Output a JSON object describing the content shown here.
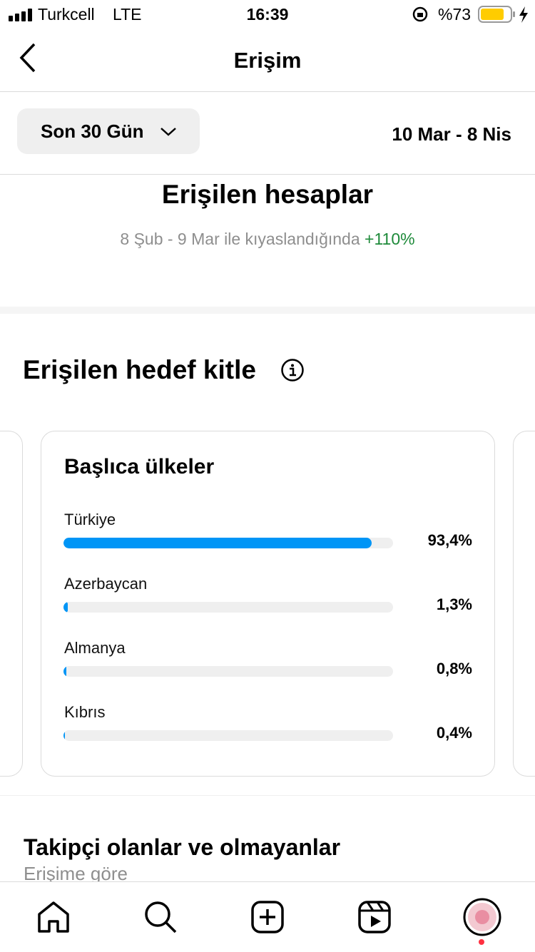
{
  "status_bar": {
    "carrier": "Turkcell",
    "network": "LTE",
    "time": "16:39",
    "battery": "%73"
  },
  "header": {
    "title": "Erişim"
  },
  "filter": {
    "period": "Son 30 Gün",
    "range": "10 Mar - 8 Nis"
  },
  "summary": {
    "title": "Erişilen hesaplar",
    "comparison": "8 Şub - 9 Mar ile kıyaslandığında",
    "change": "+110%"
  },
  "audience": {
    "title": "Erişilen hedef kitle"
  },
  "countries": {
    "type": "bar",
    "title": "Başlıca ülkeler",
    "categories": [
      "Türkiye",
      "Azerbaycan",
      "Almanya",
      "Kıbrıs"
    ],
    "values": [
      93.4,
      1.3,
      0.8,
      0.4
    ],
    "value_labels": [
      "93,4%",
      "1,3%",
      "0,8%",
      "0,4%"
    ],
    "xlim": [
      0,
      100
    ],
    "color": "#0095f6"
  },
  "followers": {
    "title": "Takipçi olanlar ve olmayanlar",
    "subtitle": "Erişime göre"
  }
}
